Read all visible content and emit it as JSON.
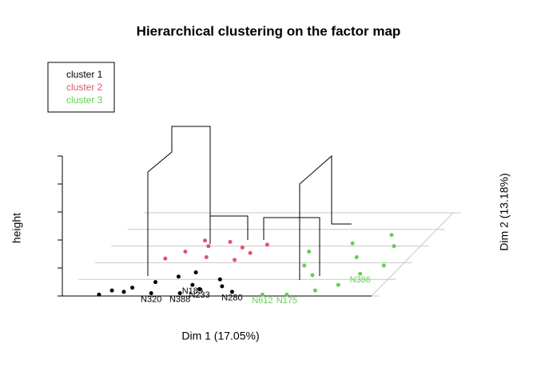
{
  "chart_data": {
    "type": "scatter3d",
    "title": "Hierarchical clustering on the factor map",
    "xlabel": "Dim 1 (17.05%)",
    "ylabel": "Dim 2 (13.18%)",
    "zlabel": "height",
    "xlim": [
      -3,
      4
    ],
    "ylim": [
      -3,
      3
    ],
    "series": [
      {
        "name": "cluster 1",
        "color": "#000000",
        "x": [
          0.75,
          -1.05,
          -0.4,
          -0.05,
          -0.3,
          -2.2,
          -2.0,
          -1.6,
          -1.2,
          -0.8,
          -1.7,
          0.2,
          -0.5,
          0.4
        ],
        "y": [
          -2.7,
          -2.8,
          -2.8,
          -2.5,
          -2.2,
          -2.9,
          -2.6,
          -2.4,
          -2.0,
          -1.6,
          -2.7,
          -1.8,
          -1.3,
          -2.3
        ],
        "labels": [
          "N280",
          "N320",
          "N388",
          "N233",
          "N189",
          null,
          null,
          null,
          null,
          null,
          null,
          null,
          null,
          null
        ]
      },
      {
        "name": "cluster 2",
        "color": "#df536b",
        "x": [
          -1.2,
          -0.8,
          -0.4,
          0.0,
          -1.5,
          -0.6,
          0.3,
          -1.0,
          0.5,
          0.1
        ],
        "y": [
          0.2,
          0.6,
          0.9,
          0.5,
          -0.3,
          -0.2,
          0.1,
          1.0,
          0.7,
          -0.4
        ],
        "labels": [
          null,
          null,
          null,
          null,
          null,
          null,
          null,
          null,
          null,
          null
        ]
      },
      {
        "name": "cluster 3",
        "color": "#61d04f",
        "x": [
          1.5,
          2.05,
          3.25,
          2.6,
          3.0,
          2.2,
          1.8,
          2.8,
          3.4,
          2.4,
          1.6,
          3.1,
          3.6
        ],
        "y": [
          -2.9,
          -2.9,
          -1.4,
          -2.6,
          -2.2,
          -1.5,
          -0.8,
          -0.2,
          0.6,
          0.8,
          0.2,
          1.4,
          -0.8
        ],
        "labels": [
          "N612",
          "N175",
          "N386",
          null,
          null,
          null,
          null,
          null,
          null,
          null,
          null,
          null,
          null
        ]
      }
    ]
  }
}
